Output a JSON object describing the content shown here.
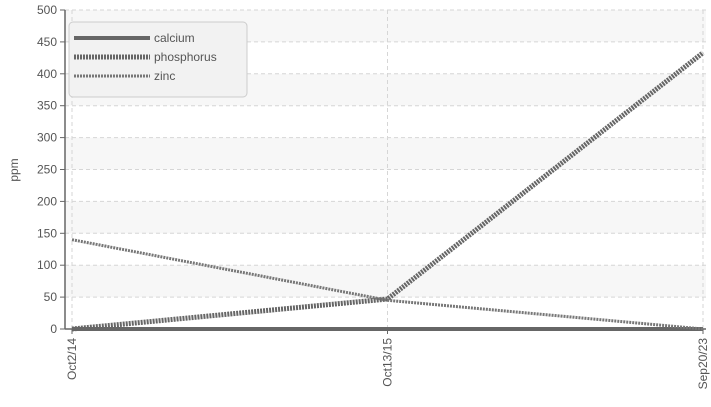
{
  "chart_data": {
    "type": "line",
    "title": "",
    "xlabel": "",
    "ylabel": "ppm",
    "categories": [
      "Oct2/14",
      "Oct13/15",
      "Sep20/23"
    ],
    "ylim": [
      0,
      500
    ],
    "yticks": [
      0,
      50,
      100,
      150,
      200,
      250,
      300,
      350,
      400,
      450,
      500
    ],
    "grid": true,
    "legend_position": "top-left",
    "series": [
      {
        "name": "calcium",
        "values": [
          0,
          0,
          0
        ],
        "color": "#666666",
        "style": "solid"
      },
      {
        "name": "phosphorus",
        "values": [
          0,
          47,
          433
        ],
        "color": "#666666",
        "style": "dotted"
      },
      {
        "name": "zinc",
        "values": [
          140,
          45,
          0
        ],
        "color": "#777777",
        "style": "dotted"
      }
    ]
  }
}
